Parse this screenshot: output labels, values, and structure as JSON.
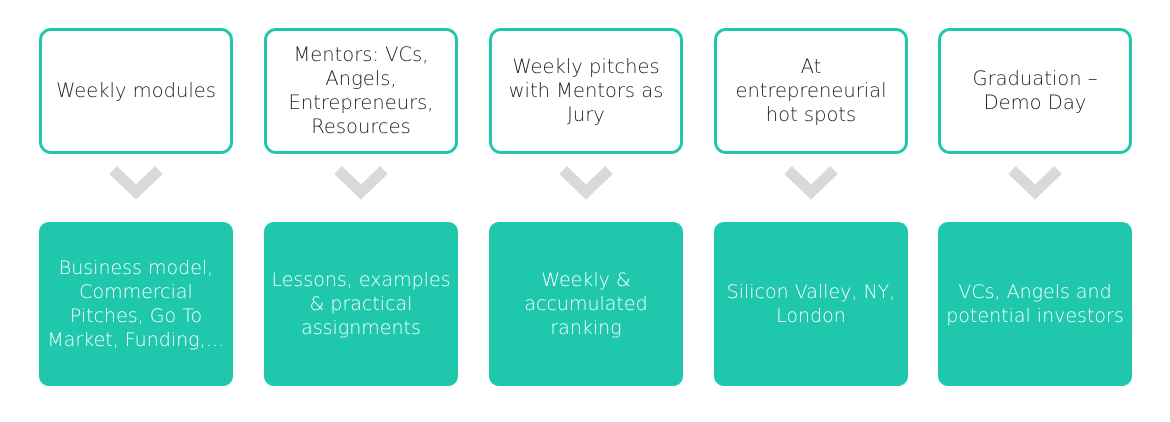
{
  "colors": {
    "accent": "#1fc8ad",
    "chevron": "#d9d9d9",
    "top_text": "#222222",
    "bottom_text": "#ffffff"
  },
  "steps": [
    {
      "top": "Weekly modules",
      "bottom": "Business model, Commercial Pitches, Go To Market, Funding,…"
    },
    {
      "top": "Mentors: VCs, Angels, Entrepreneurs, Resources",
      "bottom": "Lessons, examples & practical assignments"
    },
    {
      "top": "Weekly pitches with Mentors as Jury",
      "bottom": "Weekly & accumulated ranking"
    },
    {
      "top": "At entrepreneurial hot spots",
      "bottom": "Silicon Valley, NY, London"
    },
    {
      "top": "Graduation – Demo Day",
      "bottom": "VCs, Angels and potential investors"
    }
  ]
}
